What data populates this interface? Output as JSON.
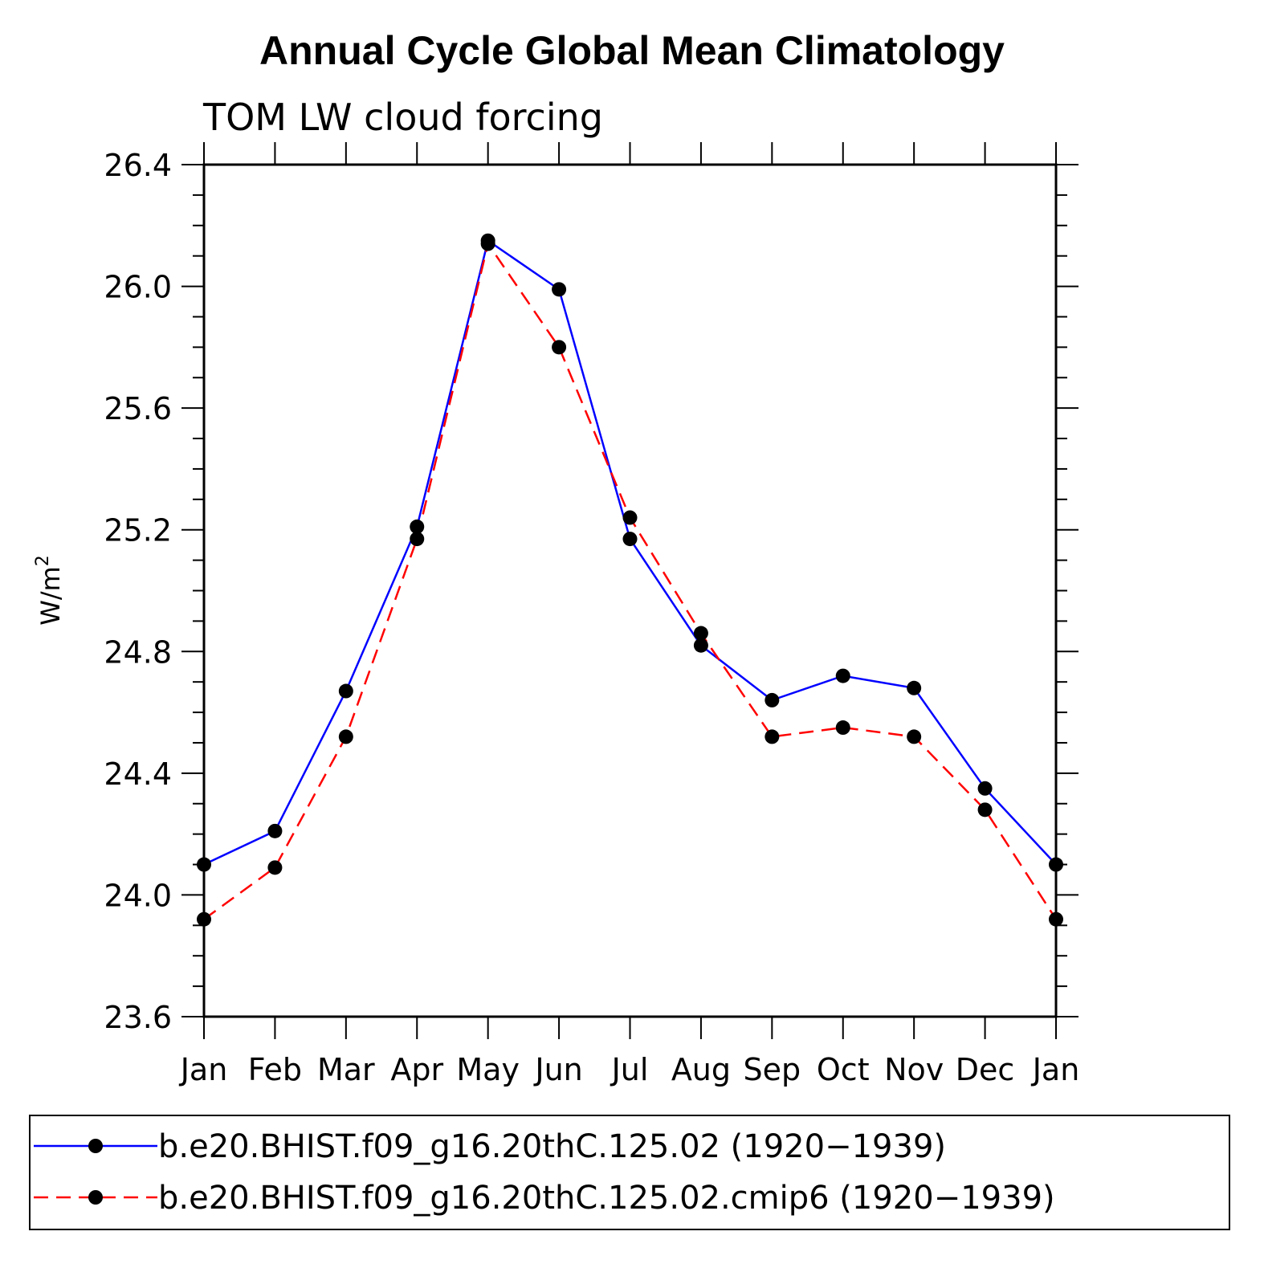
{
  "chart_data": {
    "type": "line",
    "title": "Annual Cycle Global Mean Climatology",
    "subtitle": "TOM LW cloud forcing",
    "ylabel": "W/m",
    "ylabel_superscript": "2",
    "xlabel": "",
    "categories": [
      "Jan",
      "Feb",
      "Mar",
      "Apr",
      "May",
      "Jun",
      "Jul",
      "Aug",
      "Sep",
      "Oct",
      "Nov",
      "Dec",
      "Jan"
    ],
    "ylim": [
      23.6,
      26.4
    ],
    "yticks": [
      "23.6",
      "24.0",
      "24.4",
      "24.8",
      "25.2",
      "25.6",
      "26.0",
      "26.4"
    ],
    "ytick_values": [
      23.6,
      24.0,
      24.4,
      24.8,
      25.2,
      25.6,
      26.0,
      26.4
    ],
    "grid": false,
    "legend_position": "bottom",
    "series": [
      {
        "name": "b.e20.BHIST.f09_g16.20thC.125.02 (1920−1939)",
        "color": "#0000ff",
        "dash": "solid",
        "values": [
          24.1,
          24.21,
          24.67,
          25.21,
          26.15,
          25.99,
          25.17,
          24.82,
          24.64,
          24.72,
          24.68,
          24.35,
          24.1
        ]
      },
      {
        "name": "b.e20.BHIST.f09_g16.20thC.125.02.cmip6 (1920−1939)",
        "color": "#ff0000",
        "dash": "dashed",
        "values": [
          23.92,
          24.09,
          24.52,
          25.17,
          26.14,
          25.8,
          25.24,
          24.86,
          24.52,
          24.55,
          24.52,
          24.28,
          23.92
        ]
      }
    ]
  }
}
